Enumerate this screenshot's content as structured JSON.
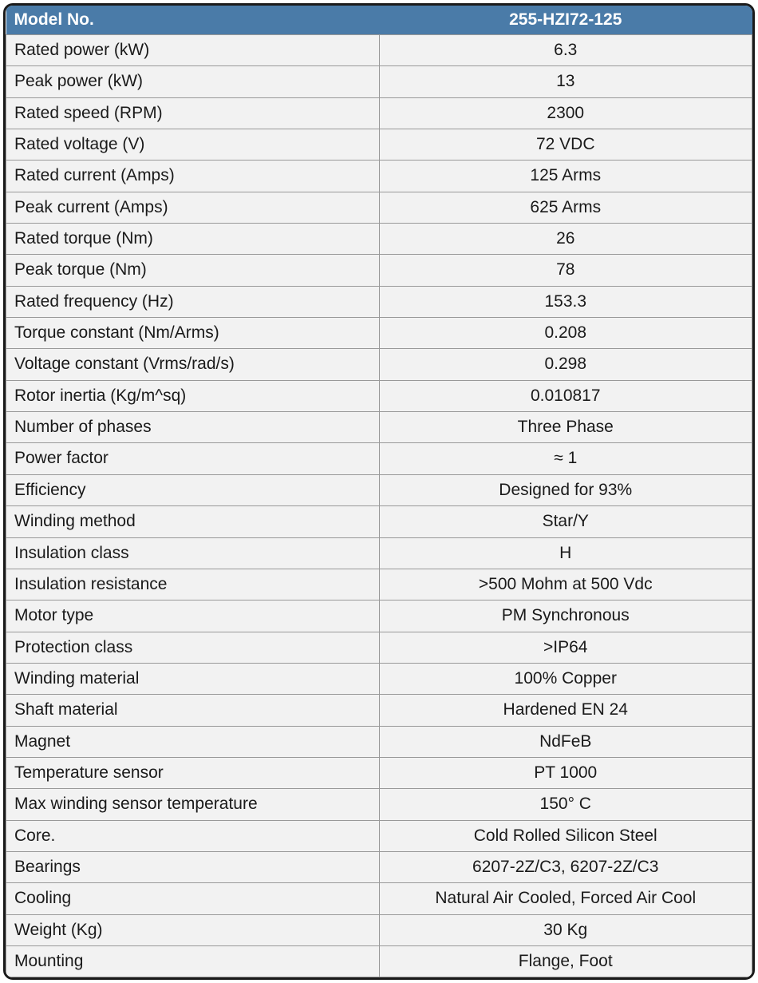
{
  "table": {
    "header": {
      "left": "Model No.",
      "right": "255-HZI72-125"
    },
    "rows": [
      {
        "label": "Rated power (kW)",
        "value": "6.3"
      },
      {
        "label": "Peak power (kW)",
        "value": "13"
      },
      {
        "label": "Rated speed (RPM)",
        "value": "2300"
      },
      {
        "label": "Rated voltage (V)",
        "value": "72 VDC"
      },
      {
        "label": "Rated current (Amps)",
        "value": "125 Arms"
      },
      {
        "label": "Peak current (Amps)",
        "value": "625 Arms"
      },
      {
        "label": "Rated torque (Nm)",
        "value": "26"
      },
      {
        "label": "Peak torque (Nm)",
        "value": "78"
      },
      {
        "label": "Rated frequency (Hz)",
        "value": "153.3"
      },
      {
        "label": "Torque constant (Nm/Arms)",
        "value": "0.208"
      },
      {
        "label": "Voltage constant (Vrms/rad/s)",
        "value": "0.298"
      },
      {
        "label": "Rotor inertia (Kg/m^sq)",
        "value": "0.010817"
      },
      {
        "label": "Number of phases",
        "value": "Three Phase"
      },
      {
        "label": "Power factor",
        "value": "≈ 1"
      },
      {
        "label": "Efficiency",
        "value": "Designed for 93%"
      },
      {
        "label": "Winding method",
        "value": "Star/Y"
      },
      {
        "label": "Insulation class",
        "value": "H"
      },
      {
        "label": "Insulation resistance",
        "value": ">500 Mohm at 500 Vdc"
      },
      {
        "label": "Motor type",
        "value": "PM Synchronous"
      },
      {
        "label": "Protection class",
        "value": ">IP64"
      },
      {
        "label": "Winding material",
        "value": "100% Copper"
      },
      {
        "label": "Shaft material",
        "value": "Hardened EN 24"
      },
      {
        "label": "Magnet",
        "value": "NdFeB"
      },
      {
        "label": "Temperature sensor",
        "value": "PT 1000"
      },
      {
        "label": "Max winding sensor temperature",
        "value": "150° C"
      },
      {
        "label": "Core.",
        "value": "Cold Rolled Silicon Steel"
      },
      {
        "label": "Bearings",
        "value": "6207-2Z/C3, 6207-2Z/C3"
      },
      {
        "label": "Cooling",
        "value": "Natural Air Cooled, Forced Air Cool"
      },
      {
        "label": "Weight (Kg)",
        "value": "30 Kg"
      },
      {
        "label": "Mounting",
        "value": "Flange, Foot"
      }
    ],
    "colors": {
      "header_bg": "#4a7ba8",
      "header_text": "#ffffff",
      "row_bg": "#f2f2f2",
      "border": "#999999",
      "outer_border": "#1a1a1a",
      "text": "#1a1a1a"
    },
    "fonts": {
      "header_size": 21,
      "header_weight": 700,
      "cell_size": 21
    }
  }
}
